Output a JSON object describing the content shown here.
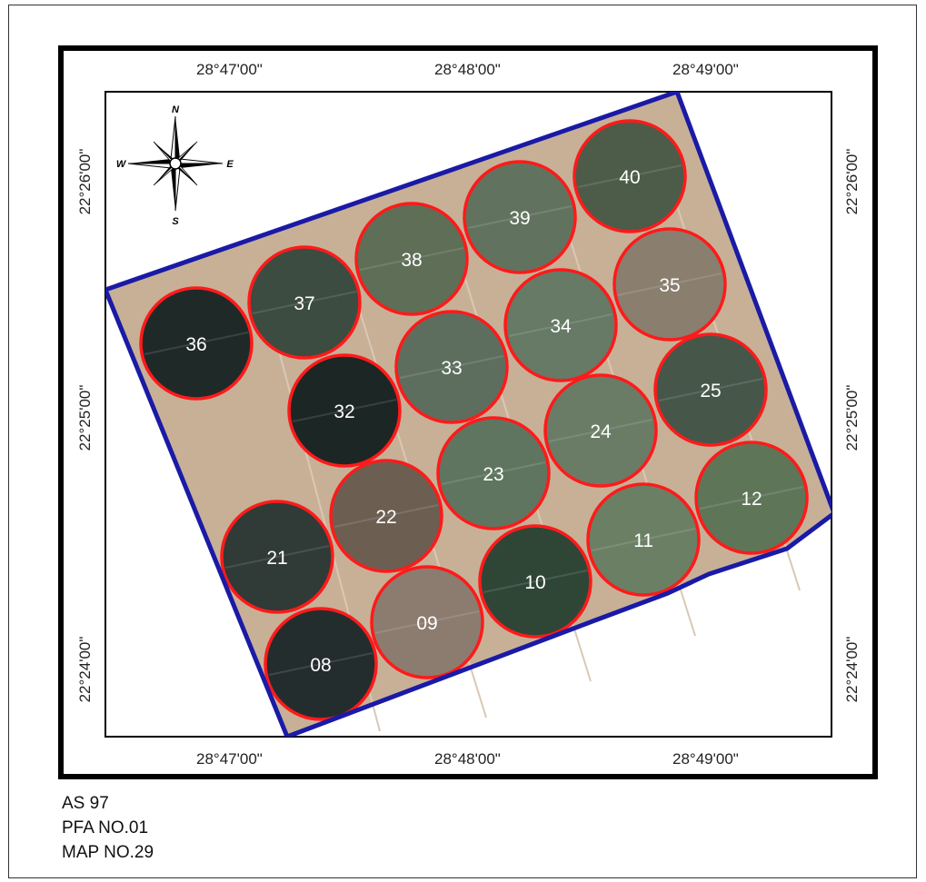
{
  "top_longitudes": [
    "28°47'00\"",
    "28°48'00\"",
    "28°49'00\""
  ],
  "bottom_longitudes": [
    "28°47'00\"",
    "28°48'00\"",
    "28°49'00\""
  ],
  "left_latitudes": [
    "22°26'00\"",
    "22°25'00\"",
    "22°24'00\""
  ],
  "right_latitudes": [
    "22°26'00\"",
    "22°25'00\"",
    "22°24'00\""
  ],
  "compass": {
    "n": "N",
    "s": "S",
    "e": "E",
    "w": "W"
  },
  "colors": {
    "boundary": "#1a1aa6",
    "pivot_outline": "#ff1a1a",
    "background": "#c8b097"
  },
  "pivots": [
    {
      "label": "40",
      "fill": "#4c5c48"
    },
    {
      "label": "39",
      "fill": "#61735f"
    },
    {
      "label": "38",
      "fill": "#5f6e56"
    },
    {
      "label": "37",
      "fill": "#3c4c40"
    },
    {
      "label": "36",
      "fill": "#1f2a28"
    },
    {
      "label": "35",
      "fill": "#8a7e6f"
    },
    {
      "label": "34",
      "fill": "#667a66"
    },
    {
      "label": "33",
      "fill": "#5e6e5e"
    },
    {
      "label": "32",
      "fill": "#1c2624"
    },
    {
      "label": "25",
      "fill": "#46574a"
    },
    {
      "label": "24",
      "fill": "#6a7c66"
    },
    {
      "label": "23",
      "fill": "#607560"
    },
    {
      "label": "22",
      "fill": "#6d5e52"
    },
    {
      "label": "12",
      "fill": "#5f7558"
    },
    {
      "label": "11",
      "fill": "#6b7f64"
    },
    {
      "label": "10",
      "fill": "#2f4636"
    },
    {
      "label": "21",
      "fill": "#303a36"
    },
    {
      "label": "09",
      "fill": "#8c7c70"
    },
    {
      "label": "08",
      "fill": "#242d2d"
    }
  ],
  "footer": {
    "line1": "AS 97",
    "line2": "PFA NO.01",
    "line3": "MAP NO.29"
  }
}
